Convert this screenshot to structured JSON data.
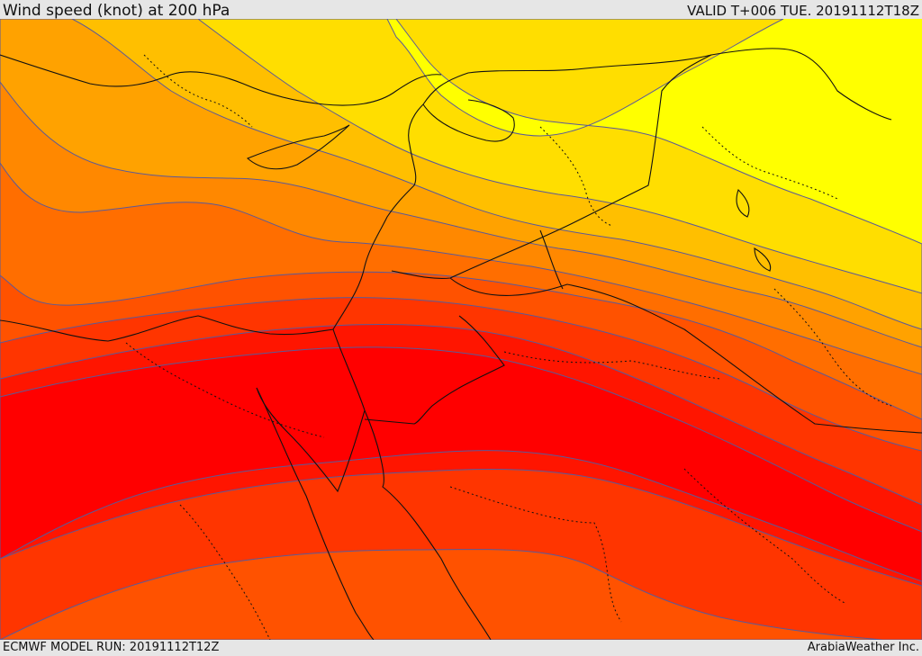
{
  "header": {
    "title": "Wind speed (knot) at 200 hPa",
    "valid_time": "VALID T+006 TUE. 20191112T18Z"
  },
  "footer": {
    "model_run": "ECMWF MODEL RUN: 20191112T12Z",
    "credit": "ArabiaWeather Inc."
  },
  "map": {
    "variable": "wind speed",
    "level": "200 hPa",
    "color_bands": [
      "#ffff00",
      "#ffde00",
      "#ffbf00",
      "#ffa200",
      "#ff8800",
      "#ff6e00",
      "#ff5200",
      "#ff3500",
      "#ff1500",
      "#ff0000"
    ],
    "contour_color": "#6a5acd",
    "border_color": "#111111"
  }
}
